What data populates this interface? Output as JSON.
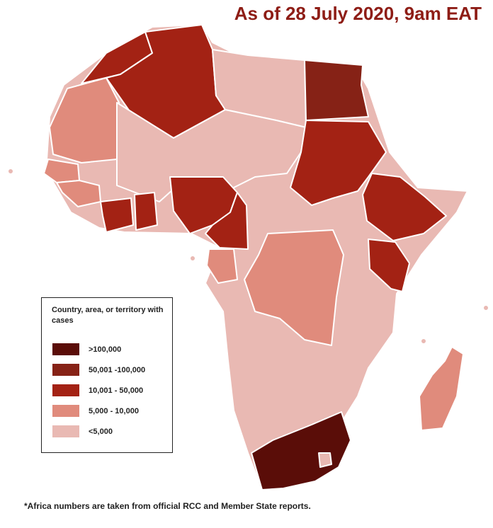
{
  "header": {
    "title": "As of 28 July 2020, 9am EAT"
  },
  "legend": {
    "title": "Country, area, or territory with cases",
    "items": [
      {
        "label": ">100,000",
        "color": "#5a0d08"
      },
      {
        "label": "50,001 -100,000",
        "color": "#862216"
      },
      {
        "label": "10,001 - 50,000",
        "color": "#a32214"
      },
      {
        "label": "5,000 - 10,000",
        "color": "#e08b7c"
      },
      {
        "label": "<5,000",
        "color": "#e9b9b3"
      }
    ]
  },
  "footnote": "*Africa numbers are taken from official RCC and Member State reports."
}
